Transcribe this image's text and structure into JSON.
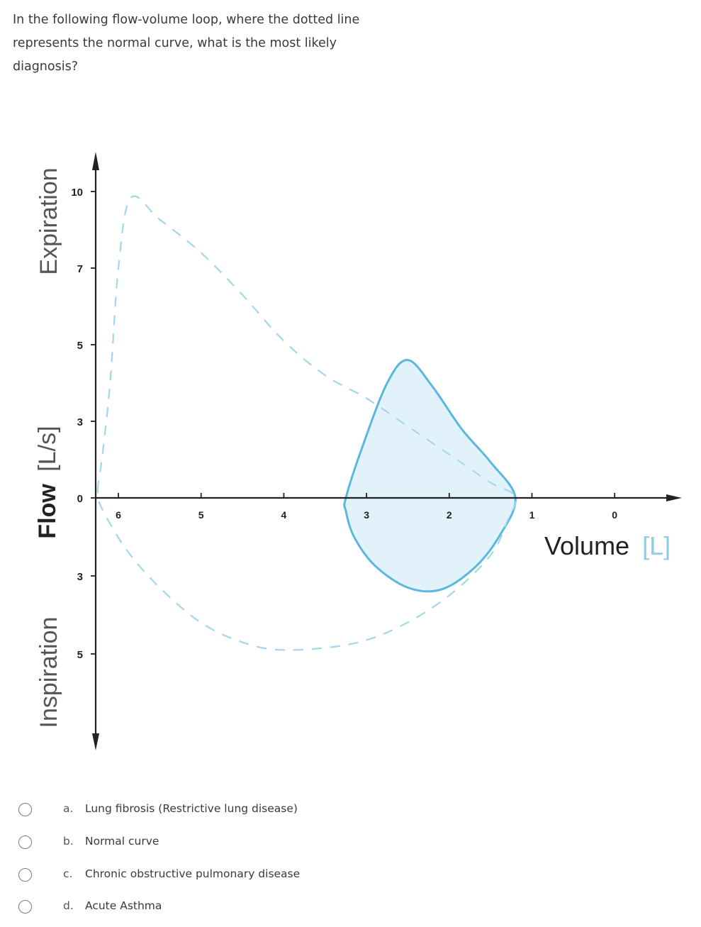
{
  "question": {
    "text": "In the following flow-volume loop, where the dotted line represents the normal curve, what is the most likely diagnosis?"
  },
  "colors": {
    "curve_fill": "#dff1fb",
    "curve_stroke": "#5bb8dc",
    "normal_dashed": "#a5d7ee",
    "axis": "#222222",
    "volume_unit_bracket": "#a5d7ee"
  },
  "chart_data": {
    "type": "line",
    "title": "",
    "xlabel": "Volume",
    "xlabel_unit": "[L]",
    "ylabel": "Flow",
    "ylabel_unit": "[L/s]",
    "ylabel_top": "Expiration",
    "ylabel_bottom": "Inspiration",
    "x_ticks": [
      "6",
      "5",
      "4",
      "3",
      "2",
      "1",
      "0"
    ],
    "y_ticks_expiration": [
      "10",
      "7",
      "5",
      "3",
      "0"
    ],
    "y_ticks_inspiration": [
      "3",
      "5"
    ],
    "x_reversed": true,
    "xlim": [
      6.25,
      -0.8
    ],
    "ylim": [
      -7.5,
      11.5
    ],
    "series": [
      {
        "style": "dashed",
        "points": [
          [
            6.25,
            0.3
          ],
          [
            6.2,
            1.5
          ],
          [
            6.1,
            4
          ],
          [
            6.0,
            7
          ],
          [
            5.85,
            9.75
          ],
          [
            5.5,
            8.9
          ],
          [
            5.0,
            7.6
          ],
          [
            4.5,
            6.3
          ],
          [
            4.0,
            5.1
          ],
          [
            3.5,
            4.2
          ],
          [
            3.0,
            3.6
          ],
          [
            2.5,
            2.8
          ],
          [
            2.0,
            1.7
          ],
          [
            1.5,
            0.6
          ],
          [
            1.2,
            0.05
          ],
          [
            1.3,
            -0.9
          ],
          [
            1.5,
            -2.2
          ],
          [
            2.0,
            -3.5
          ],
          [
            2.6,
            -4.3
          ],
          [
            3.2,
            -4.75
          ],
          [
            4.0,
            -4.9
          ],
          [
            4.5,
            -4.7
          ],
          [
            5.0,
            -4.2
          ],
          [
            5.5,
            -3.3
          ],
          [
            5.9,
            -2.0
          ],
          [
            6.2,
            -0.4
          ]
        ]
      },
      {
        "style": "solid-filled",
        "points": [
          [
            3.25,
            0
          ],
          [
            3.05,
            2.0
          ],
          [
            2.75,
            4.0
          ],
          [
            2.5,
            4.6
          ],
          [
            2.2,
            3.9
          ],
          [
            1.85,
            2.7
          ],
          [
            1.5,
            1.4
          ],
          [
            1.2,
            0
          ],
          [
            1.4,
            -1.5
          ],
          [
            1.7,
            -2.7
          ],
          [
            2.1,
            -3.35
          ],
          [
            2.5,
            -3.3
          ],
          [
            2.9,
            -2.6
          ],
          [
            3.15,
            -1.5
          ],
          [
            3.25,
            -0.5
          ]
        ]
      }
    ]
  },
  "options": [
    {
      "letter": "a.",
      "text": "Lung fibrosis (Restrictive lung disease)"
    },
    {
      "letter": "b.",
      "text": "Normal curve"
    },
    {
      "letter": "c.",
      "text": "Chronic obstructive pulmonary disease"
    },
    {
      "letter": "d.",
      "text": "Acute Asthma"
    }
  ]
}
